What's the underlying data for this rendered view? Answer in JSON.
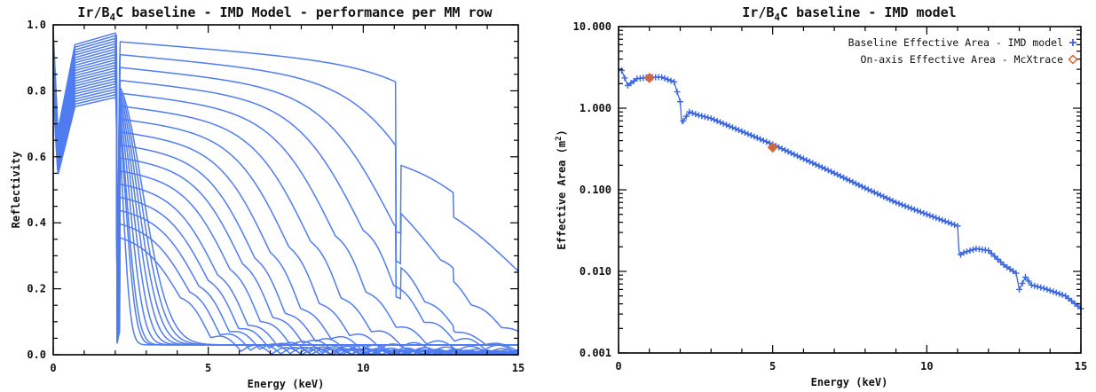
{
  "colors": {
    "curve": "#4f7cf0",
    "area_marker": "#3a67e0",
    "mcx_marker": "#e0642c",
    "mcx_marker_fill": "#c86a4a"
  },
  "chart_data": [
    {
      "type": "line",
      "title": "Ir/B4C baseline - IMD Model - performance per MM row",
      "xlabel": "Energy (keV)",
      "ylabel": "Reflectivity",
      "xlim": [
        0,
        15
      ],
      "ylim": [
        0,
        1
      ],
      "xticks": [
        "0",
        "5",
        "10",
        "15"
      ],
      "yticks": [
        "0.0",
        "0.2",
        "0.4",
        "0.6",
        "0.8",
        "1.0"
      ],
      "grid": false,
      "legend": "none",
      "family_cutoffs_keV": [
        2.3,
        2.5,
        2.6,
        2.8,
        3.0,
        3.2,
        3.4,
        3.6,
        3.8,
        4.1,
        4.4,
        4.7,
        5.0,
        5.3,
        5.7,
        6.1,
        6.5,
        7.0,
        7.6,
        8.3,
        9.1,
        10.0,
        11.0,
        12.5,
        15.0
      ],
      "series_sample": {
        "name": "",
        "x": [
          0,
          0.2,
          0.6,
          1.0,
          1.6,
          2.0,
          2.05,
          2.3,
          3,
          5,
          7,
          9,
          10,
          10.9,
          11.05,
          11.2,
          12,
          12.9,
          13.1,
          13.5,
          15
        ],
        "y": [
          0.98,
          0.7,
          0.92,
          0.96,
          0.97,
          0.97,
          0.95,
          0.95,
          0.94,
          0.92,
          0.9,
          0.87,
          0.84,
          0.78,
          0.56,
          0.59,
          0.58,
          0.4,
          0.43,
          0.43,
          0.3
        ]
      }
    },
    {
      "type": "scatter",
      "title": "Ir/B4C baseline - IMD model",
      "xlabel": "Energy (keV)",
      "ylabel": "Effective Area (m2)",
      "xlim": [
        0,
        15
      ],
      "ylim": [
        0.001,
        10
      ],
      "yscale": "log",
      "xticks": [
        "0",
        "5",
        "10",
        "15"
      ],
      "yticks": [
        "0.001",
        "0.010",
        "0.100",
        "1.000",
        "10.000"
      ],
      "grid": false,
      "legend": "top-right",
      "series": [
        {
          "name": "Baseline Effective Area - IMD model",
          "marker": "plus",
          "x": [
            0.1,
            0.3,
            0.6,
            1.0,
            1.4,
            1.8,
            2.0,
            2.05,
            2.1,
            2.3,
            2.6,
            3.0,
            4.0,
            5.0,
            6.0,
            7.0,
            8.0,
            9.0,
            10.0,
            11.0,
            11.05,
            11.1,
            11.2,
            11.6,
            12.0,
            12.5,
            12.9,
            13.0,
            13.2,
            13.4,
            13.8,
            14.5,
            15.0
          ],
          "y": [
            2.9,
            1.9,
            2.3,
            2.4,
            2.4,
            2.1,
            1.2,
            0.65,
            0.7,
            0.9,
            0.82,
            0.75,
            0.52,
            0.36,
            0.24,
            0.16,
            0.105,
            0.07,
            0.05,
            0.036,
            0.016,
            0.016,
            0.017,
            0.019,
            0.018,
            0.012,
            0.0095,
            0.006,
            0.0085,
            0.0068,
            0.0062,
            0.005,
            0.0035
          ]
        },
        {
          "name": "On-axis Effective Area - McXtrace",
          "marker": "diamond",
          "x": [
            1.0,
            5.0
          ],
          "y": [
            2.35,
            0.33
          ]
        }
      ]
    }
  ],
  "left": {
    "title_prefix": "Ir/B",
    "title_sub": "4",
    "title_suffix": "C baseline - IMD Model - performance per MM row",
    "xlabel": "Energy (keV)",
    "ylabel": "Reflectivity",
    "xticks": [
      "0",
      "5",
      "10",
      "15"
    ],
    "yticks": [
      "0.0",
      "0.2",
      "0.4",
      "0.6",
      "0.8",
      "1.0"
    ]
  },
  "right": {
    "title_prefix": "Ir/B",
    "title_sub": "4",
    "title_suffix": "C baseline - IMD model",
    "xlabel": "Energy (keV)",
    "ylabel_prefix": "Effective Area (m",
    "ylabel_sup": "2",
    "ylabel_suffix": ")",
    "xticks": [
      "0",
      "5",
      "10",
      "15"
    ],
    "yticks": [
      "0.001",
      "0.010",
      "0.100",
      "1.000",
      "10.000"
    ],
    "legend1": "Baseline Effective Area - IMD model",
    "legend2": "On-axis Effective Area - McXtrace"
  }
}
